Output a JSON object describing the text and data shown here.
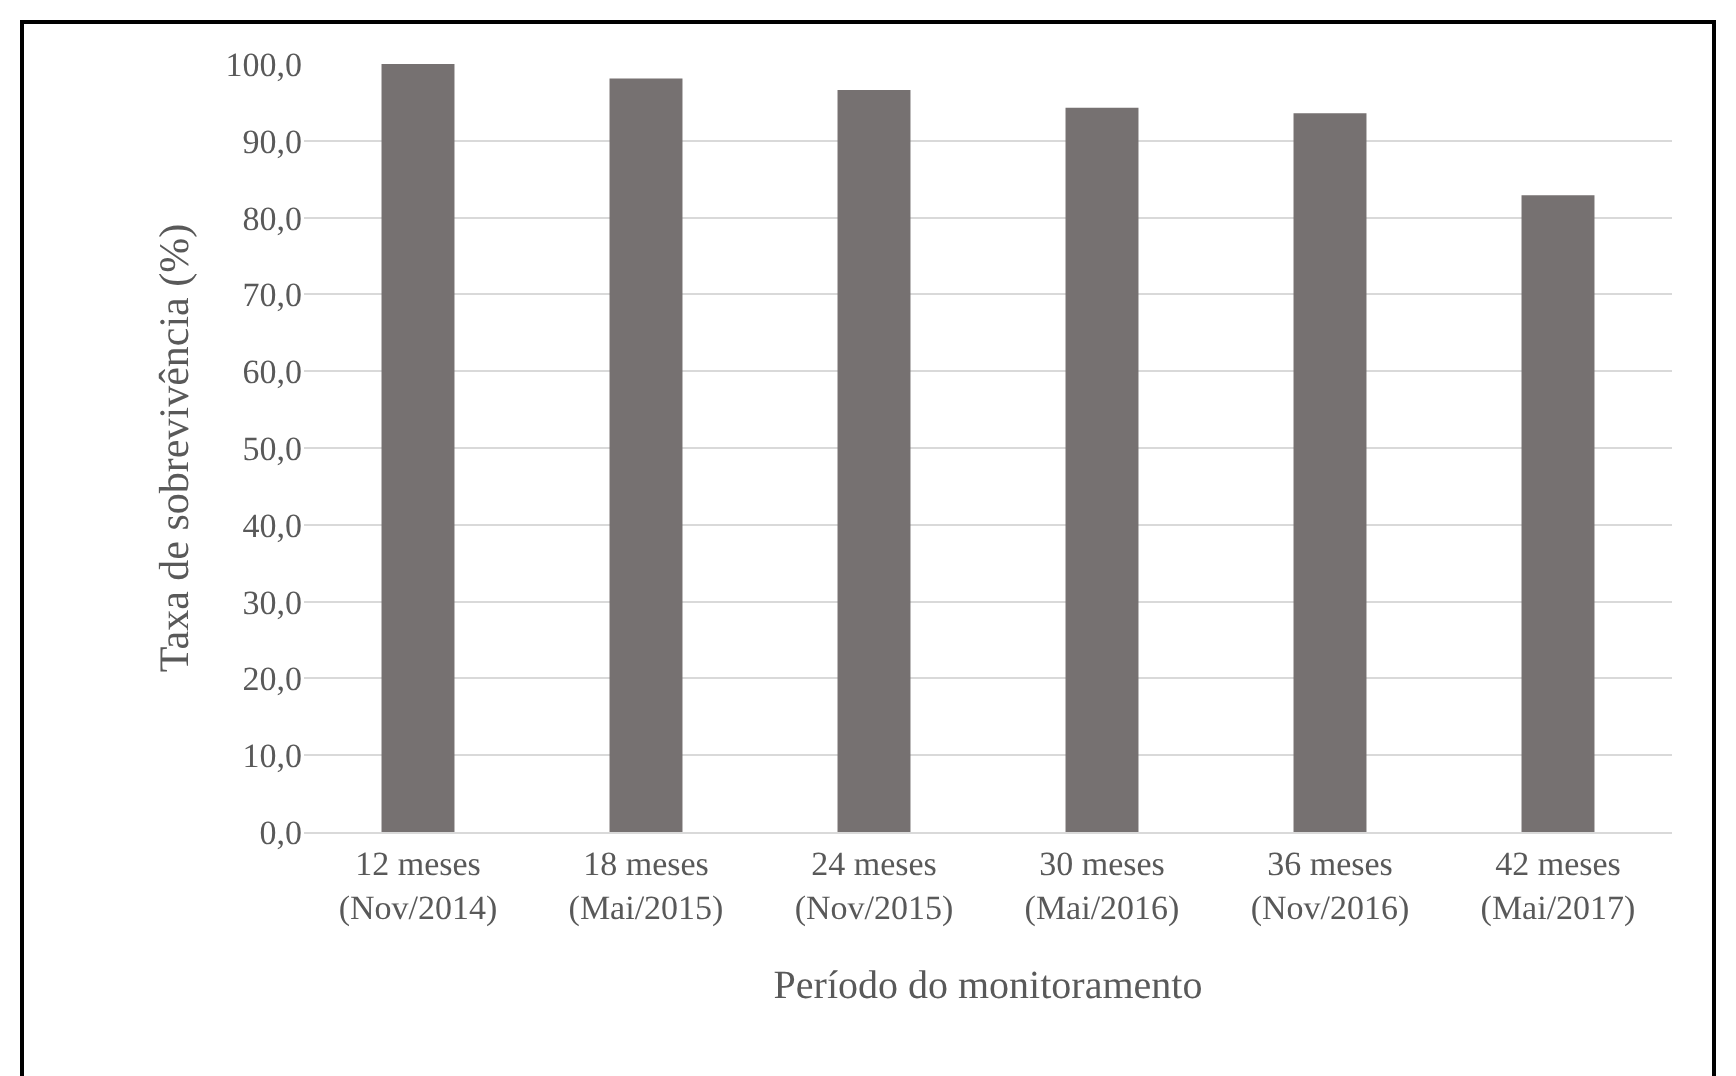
{
  "chart_data": {
    "type": "bar",
    "xlabel": "Período do monitoramento",
    "ylabel": "Taxa de sobrevivência (%)",
    "categories": [
      "12 meses\n(Nov/2014)",
      "18 meses\n(Mai/2015)",
      "24 meses\n(Nov/2015)",
      "30 meses\n(Mai/2016)",
      "36 meses\n(Nov/2016)",
      "42 meses\n(Mai/2017)"
    ],
    "values": [
      100,
      98.1,
      96.6,
      94.3,
      93.6,
      82.9
    ],
    "color": "#767171",
    "ylim": [
      0,
      100
    ],
    "yticks": [
      {
        "value": 0,
        "label": "0,0"
      },
      {
        "value": 10,
        "label": "10,0"
      },
      {
        "value": 20,
        "label": "20,0"
      },
      {
        "value": 30,
        "label": "30,0"
      },
      {
        "value": 40,
        "label": "40,0"
      },
      {
        "value": 50,
        "label": "50,0"
      },
      {
        "value": 60,
        "label": "60,0"
      },
      {
        "value": 70,
        "label": "70,0"
      },
      {
        "value": 80,
        "label": "80,0"
      },
      {
        "value": 90,
        "label": "90,0"
      },
      {
        "value": 100,
        "label": "100,0"
      }
    ],
    "grid": "y"
  }
}
